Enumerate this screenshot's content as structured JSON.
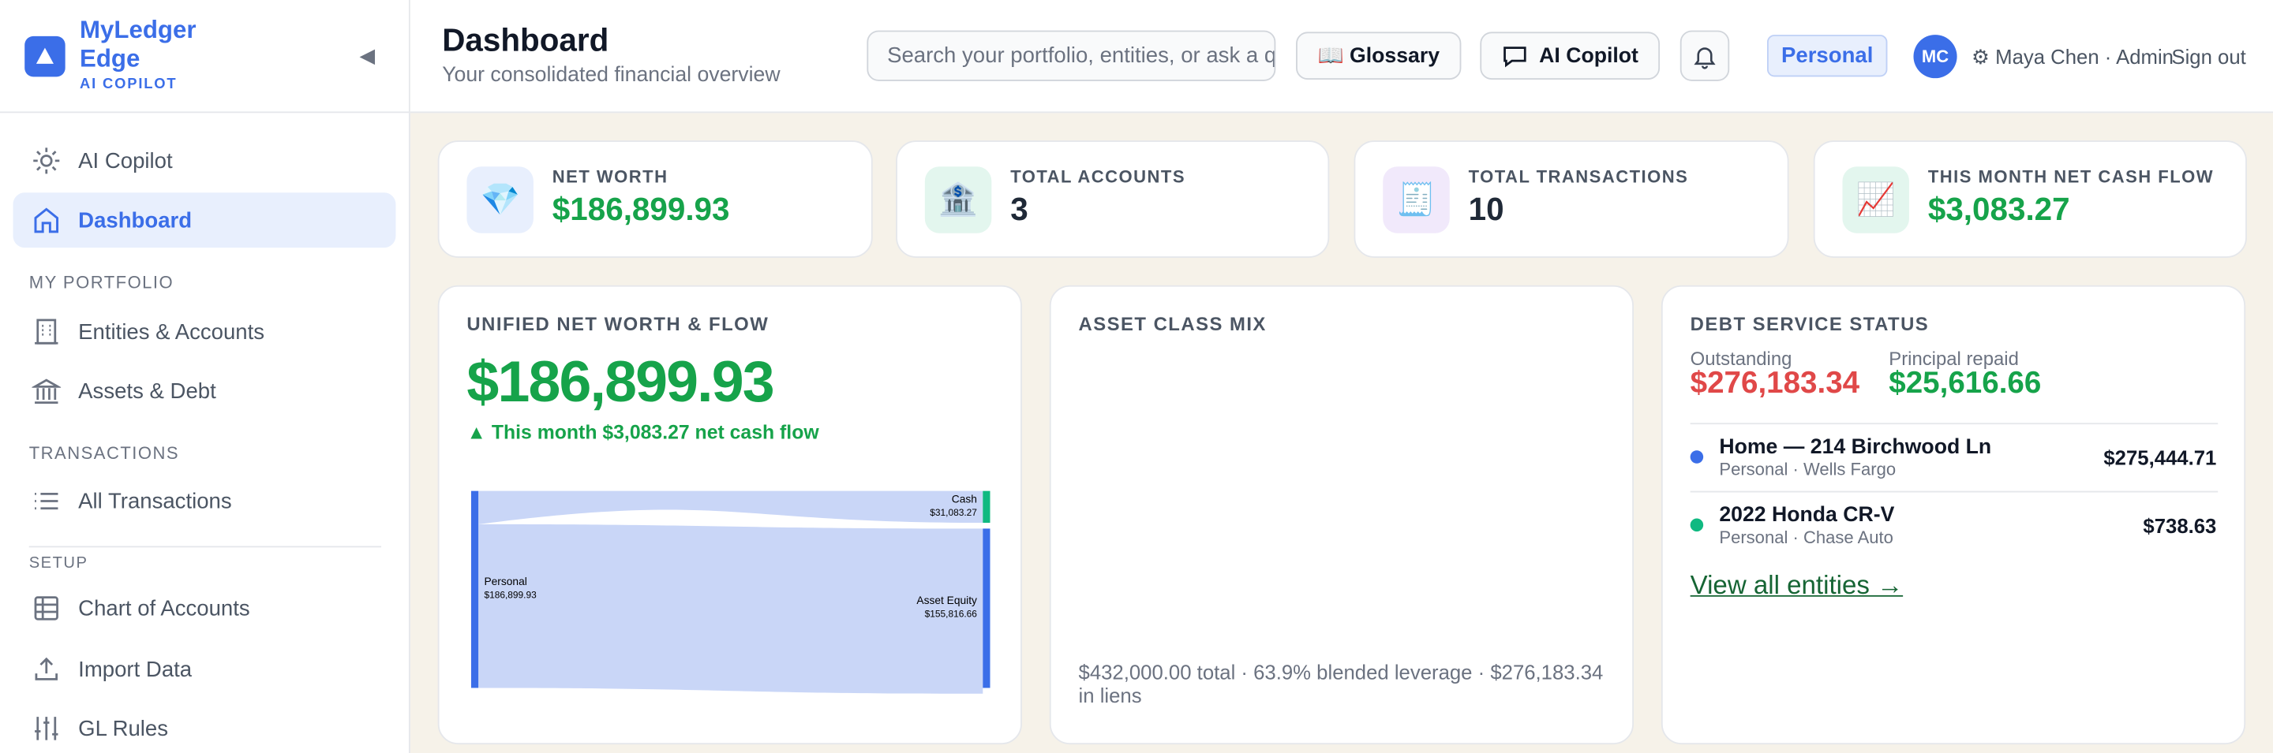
{
  "sidebar": {
    "brand": "MyLedger Edge",
    "brand_tag": "AI COPILOT",
    "collapse": "◀",
    "top_nav": [
      "AI Copilot",
      "Dashboard"
    ],
    "sections": [
      {
        "title": "MY PORTFOLIO",
        "items": [
          "Entities & Accounts",
          "Assets & Debt"
        ]
      },
      {
        "title": "TRANSACTIONS",
        "items": [
          "All Transactions"
        ]
      },
      {
        "title": "SETUP",
        "items": [
          "Chart of Accounts",
          "Import Data",
          "GL Rules"
        ]
      }
    ]
  },
  "header": {
    "title": "Dashboard",
    "subtitle": "Your consolidated financial overview",
    "search_placeholder": "Search your portfolio, entities, or ask a q",
    "glossary": "📖 Glossary",
    "copilot": "AI Copilot",
    "scope": "Personal",
    "avatar": "MC",
    "user": "⚙ Maya Chen · Admin",
    "signout": "Sign out"
  },
  "stats": [
    {
      "icon": "💎",
      "label": "NET WORTH",
      "value": "$186,899.93",
      "color": "#16a34a",
      "tint": "#e8effd"
    },
    {
      "icon": "🏦",
      "label": "TOTAL ACCOUNTS",
      "value": "3",
      "color": "#1f2937",
      "tint": "#e3f6ee"
    },
    {
      "icon": "🧾",
      "label": "TOTAL TRANSACTIONS",
      "value": "10",
      "color": "#1f2937",
      "tint": "#f1e9fb"
    },
    {
      "icon": "📈",
      "label": "THIS MONTH NET CASH FLOW",
      "value": "$3,083.27",
      "color": "#16a34a",
      "tint": "#e3f6ee"
    }
  ],
  "net_worth_panel": {
    "title": "UNIFIED NET WORTH & FLOW",
    "value": "$186,899.93",
    "change": "▲ This month $3,083.27 net cash flow",
    "sankey": {
      "source": {
        "name": "Personal",
        "value": "$186,899.93"
      },
      "targets": [
        {
          "name": "Cash",
          "value": "$31,083.27"
        },
        {
          "name": "Asset Equity",
          "value": "$155,816.66"
        }
      ]
    }
  },
  "asset_panel": {
    "title": "ASSET CLASS MIX",
    "footer": "$432,000.00 total · 63.9% blended leverage · $276,183.34 in liens"
  },
  "debt_panel": {
    "title": "DEBT SERVICE STATUS",
    "outstanding_label": "Outstanding",
    "outstanding": "$276,183.34",
    "repaid_label": "Principal repaid",
    "repaid": "$25,616.66",
    "loans": [
      {
        "name": "Home — 214 Birchwood Ln",
        "meta": "Personal · Wells Fargo",
        "balance": "$275,444.71",
        "color": "#3b6ee8"
      },
      {
        "name": "2022 Honda CR-V",
        "meta": "Personal · Chase Auto",
        "balance": "$738.63",
        "color": "#10b981"
      }
    ],
    "link": "View all entities →"
  }
}
